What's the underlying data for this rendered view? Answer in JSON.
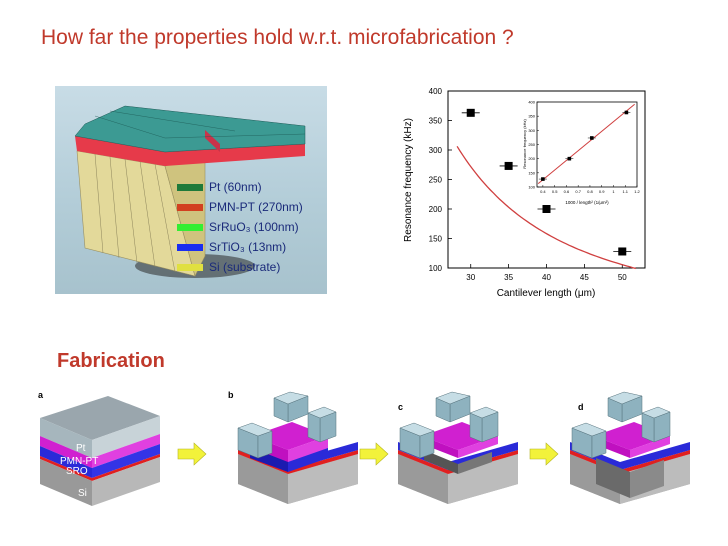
{
  "slide": {
    "title": "How far the properties hold w.r.t. microfabrication ?",
    "fabrication_heading": "Fabrication"
  },
  "colors": {
    "title": "#c0392b",
    "pt": "#1f7a3a",
    "pmn_pt": "#d2401f",
    "srruo3": "#33ee33",
    "srtio3": "#1a2ef0",
    "si": "#e0e040",
    "curve": "#d04040",
    "arrow": "#f2f23a"
  },
  "model_legend": [
    {
      "id": "pt",
      "label": "Pt (60nm)",
      "color": "#1f7a3a"
    },
    {
      "id": "pmn_pt",
      "label": "PMN-PT (270nm)",
      "color": "#d2401f"
    },
    {
      "id": "srruo3",
      "label": "SrRuO₃ (100nm)",
      "color": "#33ee33"
    },
    {
      "id": "srtio3",
      "label": "SrTiO₃ (13nm)",
      "color": "#1a2ef0"
    },
    {
      "id": "si",
      "label": "Si (substrate)",
      "color": "#e0e040"
    }
  ],
  "chart_data": {
    "type": "scatter",
    "xlabel": "Cantilever length (μm)",
    "ylabel": "Resonance frequency (kHz)",
    "xlim": [
      27,
      53
    ],
    "ylim": [
      100,
      400
    ],
    "xticks": [
      30,
      35,
      40,
      45,
      50
    ],
    "yticks": [
      100,
      150,
      200,
      250,
      300,
      350,
      400
    ],
    "x": [
      30,
      35,
      40,
      50
    ],
    "y": [
      363,
      273,
      200,
      128
    ],
    "inset": {
      "xlabel": "1000 / length² (1/μm²)",
      "ylabel": "Resonance frequency (kHz)",
      "xlim": [
        0.35,
        1.2
      ],
      "ylim": [
        100,
        400
      ],
      "xticks": [
        0.4,
        0.5,
        0.6,
        0.7,
        0.8,
        0.9,
        1.0,
        1.1,
        1.2
      ],
      "yticks": [
        100,
        150,
        200,
        250,
        300,
        350,
        400
      ],
      "x": [
        0.4,
        0.625,
        0.816,
        1.11
      ],
      "y": [
        128,
        200,
        273,
        363
      ]
    }
  },
  "fabrication": {
    "panels": [
      {
        "letter": "a"
      },
      {
        "letter": "b"
      },
      {
        "letter": "c"
      },
      {
        "letter": "d"
      }
    ],
    "layer_labels": {
      "pt": "Pt",
      "pmn_pt": "PMN-PT",
      "sro": "SRO",
      "si": "Si"
    }
  }
}
